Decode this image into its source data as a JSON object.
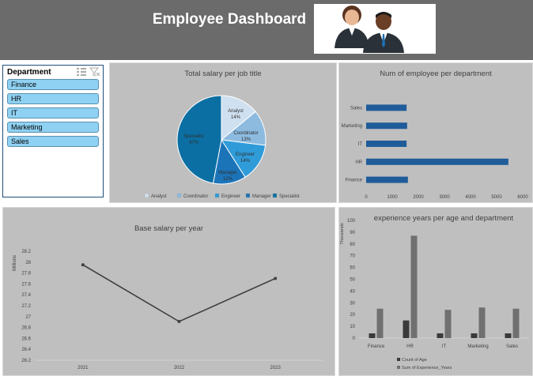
{
  "dashboard": {
    "title": "Employee Dashboard"
  },
  "slicer": {
    "title": "Department",
    "items": [
      "Finance",
      "HR",
      "IT",
      "Marketing",
      "Sales"
    ]
  },
  "colors": {
    "header": "#6b6b6b",
    "panel": "#bfbfbf",
    "slicer_item": "#8fd1f2",
    "bar_blue": "#1f5c99",
    "line": "#404040",
    "count_of_age": "#3a3a3a",
    "sum_experience": "#707070",
    "pie": [
      "#cfe0f0",
      "#8dbbe0",
      "#2f9bd8",
      "#1c74b8",
      "#0b6fa3"
    ]
  },
  "chart_data": [
    {
      "type": "pie",
      "title": "Total salary per job title",
      "labels": [
        "Analyst",
        "Coordinator",
        "Engineer",
        "Manager",
        "Specialist"
      ],
      "values": [
        14,
        13,
        14,
        12,
        47
      ],
      "data_labels": [
        "Analyst\n14%",
        "Coordinator\n13%",
        "Engineer\n14%",
        "Manager\n12%",
        "Specialist\n47%"
      ],
      "legend": "bottom"
    },
    {
      "type": "bar",
      "orientation": "horizontal",
      "title": "Num of employee per department",
      "categories": [
        "Finance",
        "HR",
        "IT",
        "Marketing",
        "Sales"
      ],
      "values": [
        1600,
        5450,
        1550,
        1570,
        1550
      ],
      "xlim": [
        0,
        6000
      ],
      "xticks": [
        0,
        1000,
        2000,
        3000,
        4000,
        5000,
        6000
      ]
    },
    {
      "type": "line",
      "title": "Base salary per year",
      "ylabel": "Millions",
      "x": [
        "2021",
        "2022",
        "2023"
      ],
      "values": [
        27.95,
        26.91,
        27.7
      ],
      "ylim": [
        26.2,
        28.2
      ],
      "yticks": [
        "26.2",
        "26.4",
        "26.6",
        "26.8",
        "27",
        "27.2",
        "27.4",
        "27.6",
        "27.8",
        "28",
        "28.2"
      ]
    },
    {
      "type": "bar",
      "title": "experience years per age and department",
      "ylabel": "Thousands",
      "categories": [
        "Finance",
        "HR",
        "IT",
        "Marketing",
        "Sales"
      ],
      "series": [
        {
          "name": "Count of Age",
          "values": [
            4,
            15,
            4,
            4,
            4
          ]
        },
        {
          "name": "Sum of Experience_Years",
          "values": [
            25,
            87,
            24,
            26,
            25
          ]
        }
      ],
      "ylim": [
        0,
        100
      ],
      "yticks": [
        "0",
        "10",
        "20",
        "30",
        "40",
        "50",
        "60",
        "70",
        "80",
        "90",
        "100"
      ],
      "legend": "bottom"
    }
  ]
}
